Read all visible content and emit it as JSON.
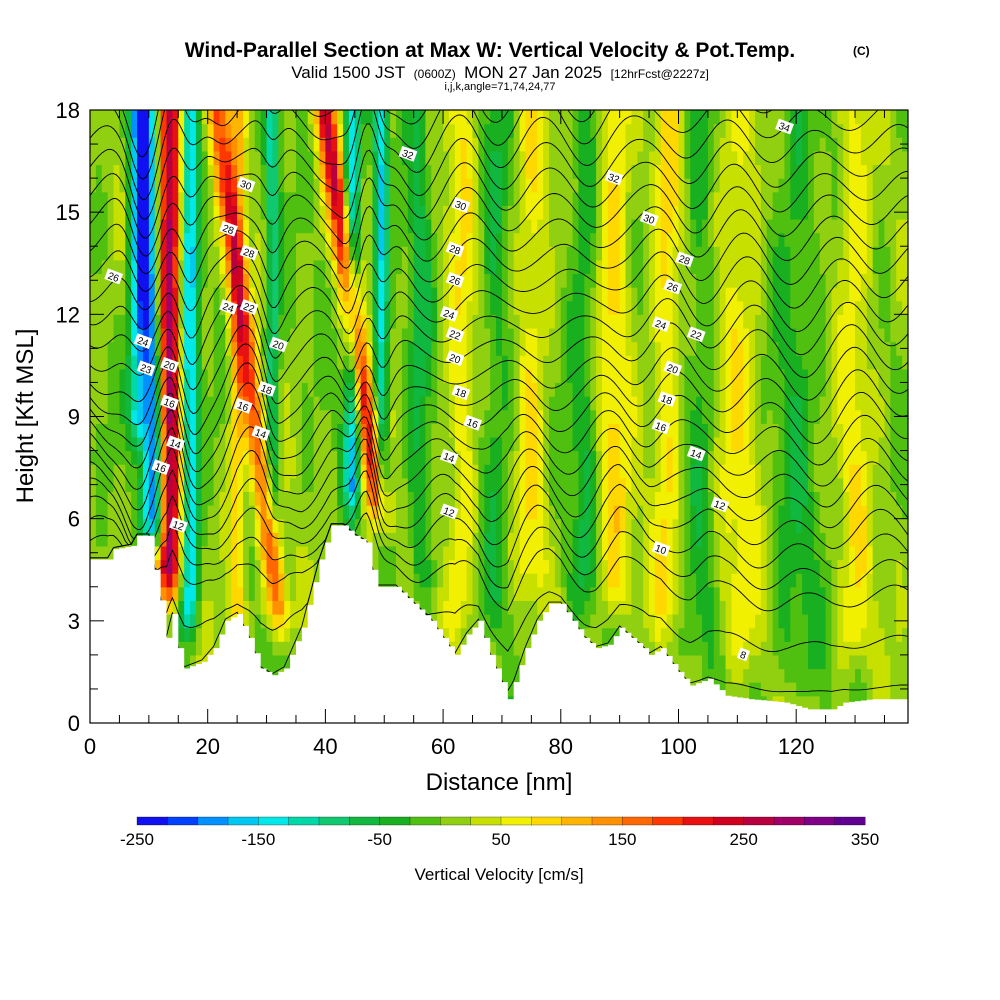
{
  "chart_data": {
    "type": "heatmap",
    "title": "Wind-Parallel Section at Max W: Vertical Velocity & Pot.Temp.",
    "title_mark": "(C)",
    "subtitle_main": "Valid 1500 JST",
    "subtitle_utc": "(0600Z)",
    "subtitle_date": "MON 27 Jan 2025",
    "subtitle_fcst": "[12hrFcst@2227z]",
    "subtitle_ijk": "i,j,k,angle=71,74,24,77",
    "xlabel": "Distance [nm]",
    "ylabel": "Height [Kft MSL]",
    "xlim": [
      0,
      139
    ],
    "ylim": [
      0,
      18
    ],
    "x_ticks": [
      "0",
      "20",
      "40",
      "60",
      "80",
      "100",
      "120"
    ],
    "x_tick_values": [
      0,
      20,
      40,
      60,
      80,
      100,
      120
    ],
    "y_ticks": [
      "0",
      "3",
      "6",
      "9",
      "12",
      "15",
      "18"
    ],
    "y_tick_values": [
      0,
      3,
      6,
      9,
      12,
      15,
      18
    ],
    "grid": false,
    "colorbar": {
      "label": "Vertical Velocity [cm/s]",
      "min": -250,
      "max": 350,
      "step": 25,
      "tick_labels": [
        "-250",
        "-150",
        "-50",
        "50",
        "150",
        "250",
        "350"
      ],
      "tick_values": [
        -250,
        -150,
        -50,
        50,
        150,
        250,
        350
      ],
      "colors": [
        "#1010f0",
        "#0040ff",
        "#0090ff",
        "#00c8f0",
        "#00e8e8",
        "#00d8a8",
        "#10c870",
        "#10b840",
        "#18b020",
        "#50c010",
        "#90d010",
        "#c8e000",
        "#f0f000",
        "#ffd800",
        "#ffb400",
        "#ff9000",
        "#ff6800",
        "#ff3800",
        "#e81010",
        "#d00020",
        "#b80040",
        "#a00068",
        "#800088",
        "#600090"
      ]
    },
    "terrain_kft": [
      [
        0,
        4.8
      ],
      [
        3,
        4.8
      ],
      [
        4,
        5.1
      ],
      [
        7,
        5.2
      ],
      [
        8,
        5.5
      ],
      [
        10,
        5.5
      ],
      [
        11,
        4.5
      ],
      [
        12,
        3.6
      ],
      [
        13,
        2.5
      ],
      [
        14,
        3.2
      ],
      [
        15,
        2.2
      ],
      [
        16,
        1.6
      ],
      [
        19,
        1.8
      ],
      [
        21,
        2.2
      ],
      [
        23,
        3.0
      ],
      [
        25,
        3.2
      ],
      [
        27,
        2.5
      ],
      [
        29,
        1.6
      ],
      [
        31,
        1.4
      ],
      [
        33,
        1.6
      ],
      [
        36,
        2.8
      ],
      [
        39,
        4.8
      ],
      [
        41,
        5.8
      ],
      [
        43,
        5.8
      ],
      [
        45,
        5.5
      ],
      [
        47,
        5.3
      ],
      [
        48,
        4.5
      ],
      [
        49,
        4.0
      ],
      [
        52,
        4.0
      ],
      [
        55,
        3.5
      ],
      [
        58,
        3.0
      ],
      [
        60,
        2.5
      ],
      [
        62,
        2.0
      ],
      [
        64,
        2.6
      ],
      [
        66,
        3.0
      ],
      [
        68,
        2.0
      ],
      [
        70,
        1.2
      ],
      [
        71,
        0.7
      ],
      [
        72,
        1.2
      ],
      [
        74,
        2.2
      ],
      [
        76,
        3.0
      ],
      [
        78,
        3.5
      ],
      [
        80,
        3.5
      ],
      [
        82,
        3.0
      ],
      [
        84,
        2.5
      ],
      [
        86,
        2.2
      ],
      [
        88,
        2.3
      ],
      [
        90,
        2.8
      ],
      [
        92,
        2.5
      ],
      [
        94,
        2.2
      ],
      [
        95,
        2.0
      ],
      [
        97,
        2.2
      ],
      [
        100,
        1.5
      ],
      [
        102,
        1.1
      ],
      [
        105,
        1.3
      ],
      [
        108,
        0.8
      ],
      [
        112,
        0.7
      ],
      [
        118,
        0.6
      ],
      [
        122,
        0.4
      ],
      [
        126,
        0.4
      ],
      [
        128,
        0.6
      ],
      [
        133,
        0.7
      ],
      [
        139,
        0.7
      ]
    ],
    "updrafts": [
      {
        "x": 13.5,
        "w": 2.0,
        "value": 280,
        "lean": 0.0,
        "bottom": 3.0
      },
      {
        "x": 28.0,
        "w": 1.8,
        "value": 160,
        "lean": -1.2,
        "bottom": 2.0
      },
      {
        "x": 47.0,
        "w": 1.8,
        "value": 230,
        "lean": -1.3,
        "bottom": 5.0
      },
      {
        "x": 25.0,
        "w": 1.5,
        "value": 90,
        "lean": 0.0,
        "bottom": 2.0
      },
      {
        "x": 63.0,
        "w": 2.5,
        "value": 60,
        "lean": 0.0,
        "bottom": 2.0
      },
      {
        "x": 75.0,
        "w": 2.5,
        "value": 65,
        "lean": 0.0,
        "bottom": 3.0
      },
      {
        "x": 89.0,
        "w": 3.0,
        "value": 70,
        "lean": 0.0,
        "bottom": 2.5
      },
      {
        "x": 98.0,
        "w": 2.5,
        "value": 70,
        "lean": 0.0,
        "bottom": 2.0
      },
      {
        "x": 110.0,
        "w": 4.0,
        "value": 55,
        "lean": 0.0,
        "bottom": 1.0
      },
      {
        "x": 130.0,
        "w": 3.0,
        "value": 55,
        "lean": 0.0,
        "bottom": 1.0
      }
    ],
    "downdrafts": [
      {
        "x": 10.5,
        "w": 1.8,
        "value": -230,
        "lean": -0.2,
        "bottom": 4.5
      },
      {
        "x": 17.0,
        "w": 1.5,
        "value": -170,
        "lean": 0.0,
        "bottom": 2.0
      },
      {
        "x": 8.0,
        "w": 1.5,
        "value": -140,
        "lean": 0.0,
        "bottom": 7.5
      },
      {
        "x": 31.0,
        "w": 1.2,
        "value": -110,
        "lean": 0.0,
        "bottom": 5.0
      },
      {
        "x": 44.5,
        "w": 1.4,
        "value": -160,
        "lean": 0.0,
        "bottom": 5.5
      },
      {
        "x": 49.5,
        "w": 1.2,
        "value": -150,
        "lean": 0.0,
        "bottom": 5.0
      },
      {
        "x": 56.0,
        "w": 2.0,
        "value": -60,
        "lean": 0.0,
        "bottom": 3.0
      },
      {
        "x": 69.0,
        "w": 2.5,
        "value": -50,
        "lean": 0.0,
        "bottom": 2.0
      },
      {
        "x": 84.0,
        "w": 2.5,
        "value": -55,
        "lean": 0.0,
        "bottom": 2.5
      },
      {
        "x": 104.0,
        "w": 3.0,
        "value": -45,
        "lean": 0.0,
        "bottom": 1.0
      },
      {
        "x": 120.0,
        "w": 4.0,
        "value": -45,
        "lean": 0.0,
        "bottom": 0.5
      }
    ],
    "theta_contour_labels": [
      {
        "text": "34",
        "x": 118,
        "y": 17.5
      },
      {
        "text": "32",
        "x": 54,
        "y": 16.7
      },
      {
        "text": "32",
        "x": 89,
        "y": 16.0
      },
      {
        "text": "30",
        "x": 26.5,
        "y": 15.8
      },
      {
        "text": "30",
        "x": 63,
        "y": 15.2
      },
      {
        "text": "30",
        "x": 95,
        "y": 14.8
      },
      {
        "text": "28",
        "x": 23.5,
        "y": 14.5
      },
      {
        "text": "28",
        "x": 27,
        "y": 13.8
      },
      {
        "text": "28",
        "x": 62,
        "y": 13.9
      },
      {
        "text": "28",
        "x": 101,
        "y": 13.6
      },
      {
        "text": "26",
        "x": 4,
        "y": 13.1
      },
      {
        "text": "26",
        "x": 62,
        "y": 13.0
      },
      {
        "text": "26",
        "x": 99,
        "y": 12.8
      },
      {
        "text": "24",
        "x": 23.5,
        "y": 12.2
      },
      {
        "text": "22",
        "x": 27,
        "y": 12.2
      },
      {
        "text": "24",
        "x": 61,
        "y": 12.0
      },
      {
        "text": "24",
        "x": 97,
        "y": 11.7
      },
      {
        "text": "24",
        "x": 9,
        "y": 11.2
      },
      {
        "text": "20",
        "x": 32,
        "y": 11.1
      },
      {
        "text": "22",
        "x": 62,
        "y": 11.4
      },
      {
        "text": "22",
        "x": 103,
        "y": 11.4
      },
      {
        "text": "23",
        "x": 9.5,
        "y": 10.4
      },
      {
        "text": "20",
        "x": 13.5,
        "y": 10.5
      },
      {
        "text": "20",
        "x": 62,
        "y": 10.7
      },
      {
        "text": "20",
        "x": 99,
        "y": 10.4
      },
      {
        "text": "18",
        "x": 30,
        "y": 9.8
      },
      {
        "text": "18",
        "x": 63,
        "y": 9.7
      },
      {
        "text": "18",
        "x": 98,
        "y": 9.5
      },
      {
        "text": "16",
        "x": 13.5,
        "y": 9.4
      },
      {
        "text": "16",
        "x": 26,
        "y": 9.3
      },
      {
        "text": "16",
        "x": 65,
        "y": 8.8
      },
      {
        "text": "16",
        "x": 97,
        "y": 8.7
      },
      {
        "text": "14",
        "x": 14.5,
        "y": 8.2
      },
      {
        "text": "14",
        "x": 29,
        "y": 8.5
      },
      {
        "text": "14",
        "x": 61,
        "y": 7.8
      },
      {
        "text": "14",
        "x": 103,
        "y": 7.9
      },
      {
        "text": "16",
        "x": 12,
        "y": 7.5
      },
      {
        "text": "12",
        "x": 15,
        "y": 5.8
      },
      {
        "text": "12",
        "x": 61,
        "y": 6.2
      },
      {
        "text": "12",
        "x": 107,
        "y": 6.4
      },
      {
        "text": "10",
        "x": 97,
        "y": 5.1
      },
      {
        "text": "8",
        "x": 111,
        "y": 2.0
      }
    ],
    "theta_levels": [
      8,
      10,
      12,
      13,
      14,
      15,
      16,
      17,
      18,
      19,
      20,
      21,
      22,
      23,
      24,
      25,
      26,
      27,
      28,
      29,
      30,
      31,
      32,
      33,
      34
    ]
  }
}
